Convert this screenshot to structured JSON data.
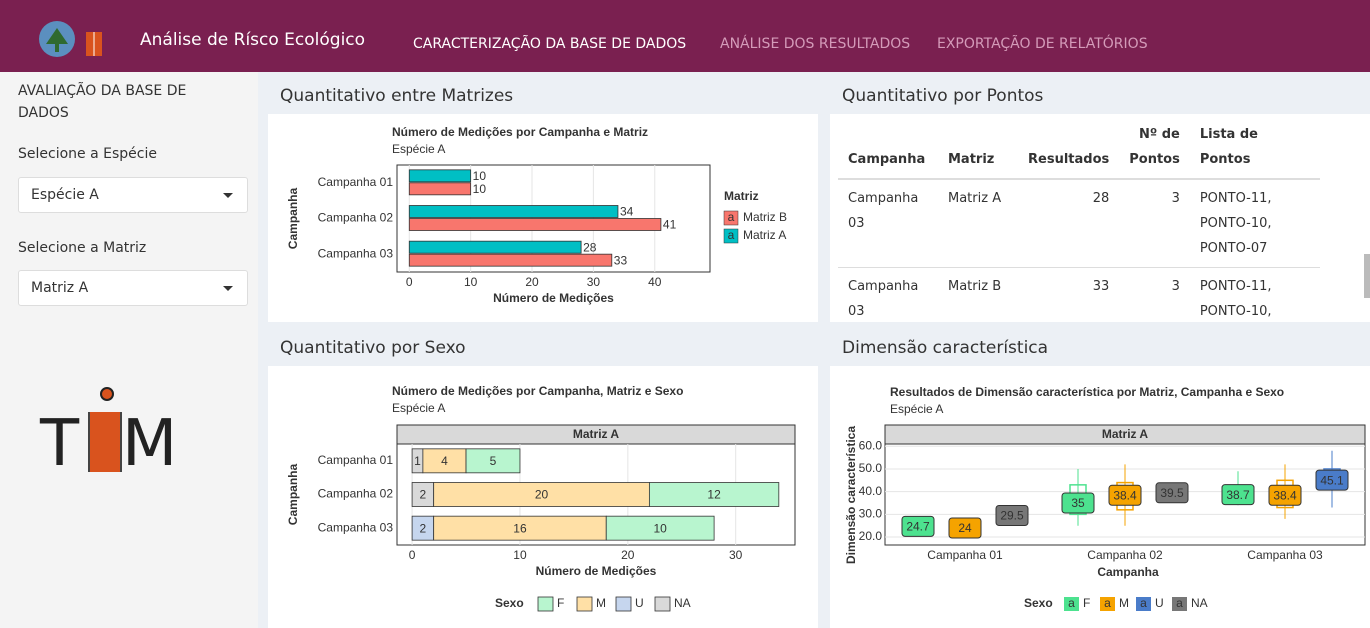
{
  "header": {
    "title": "Análise de Rísco Ecológico",
    "nav": [
      "CARACTERIZAÇÃO DA BASE DE DADOS",
      "ANÁLISE DOS RESULTADOS",
      "EXPORTAÇÃO DE RELATÓRIOS"
    ]
  },
  "sidebar": {
    "heading": "AVALIAÇÃO DA BASE DE DADOS",
    "species_label": "Selecione a Espécie",
    "species_value": "Espécie A",
    "matrix_label": "Selecione a Matriz",
    "matrix_value": "Matriz A",
    "logo_text": [
      "T",
      "M"
    ]
  },
  "panels": [
    {
      "title": "Quantitativo entre Matrizes",
      "chart_data": {
        "type": "grouped_hbar",
        "title": "Número de Medições por Campanha e Matriz",
        "subtitle": "Espécie A",
        "x_label": "Número de Medições",
        "y_label": "Campanha",
        "categories": [
          "Campanha 01",
          "Campanha 02",
          "Campanha 03"
        ],
        "series": [
          {
            "name": "Matriz A",
            "color": "#00bfc4",
            "values": [
              10,
              34,
              28
            ]
          },
          {
            "name": "Matriz B",
            "color": "#f8766d",
            "values": [
              10,
              41,
              33
            ]
          }
        ],
        "legend_title": "Matriz",
        "legend_key": "a",
        "xlim": [
          -2,
          49
        ],
        "xticks": [
          0,
          10,
          20,
          30,
          40
        ],
        "grid": true
      }
    },
    {
      "title": "Quantitativo por Pontos",
      "table": {
        "columns": [
          "Campanha",
          "Matriz",
          "Resultados",
          "Nº de Pontos",
          "Lista de Pontos"
        ],
        "rows": [
          [
            "Campanha 03",
            "Matriz A",
            "28",
            "3",
            "PONTO-11, PONTO-10, PONTO-07"
          ],
          [
            "Campanha 03",
            "Matriz B",
            "33",
            "3",
            "PONTO-11, PONTO-10,"
          ]
        ]
      }
    },
    {
      "title": "Quantitativo por Sexo",
      "chart_data": {
        "type": "stacked_hbar",
        "title": "Número de Medições por Campanha, Matriz e Sexo",
        "subtitle": "Espécie A",
        "facet": "Matriz A",
        "x_label": "Número de Medições",
        "y_label": "Campanha",
        "categories": [
          "Campanha 01",
          "Campanha 02",
          "Campanha 03"
        ],
        "series": [
          {
            "name": "F",
            "color": "#b8f5cf",
            "values": [
              5,
              12,
              10
            ]
          },
          {
            "name": "M",
            "color": "#ffe0a6",
            "values": [
              4,
              20,
              16
            ]
          },
          {
            "name": "U",
            "color": "#c6d6ee",
            "values": [
              null,
              null,
              2
            ]
          },
          {
            "name": "NA",
            "color": "#d9d9d9",
            "values": [
              1,
              2,
              null
            ]
          }
        ],
        "legend_title": "Sexo",
        "xlim": [
          -1.4,
          35.5
        ],
        "xticks": [
          0,
          10,
          20,
          30
        ],
        "grid": true
      }
    },
    {
      "title": "Dimensão característica",
      "chart_data": {
        "type": "boxplot",
        "title": "Resultados de Dimensão característica por Matriz, Campanha e Sexo",
        "subtitle": "Espécie A",
        "facet": "Matriz A",
        "x_label": "Campanha",
        "y_label": "Dimensão característica",
        "categories": [
          "Campanha 01",
          "Campanha 02",
          "Campanha 03"
        ],
        "series": [
          {
            "name": "F",
            "color": "#4de28f",
            "median": [
              24.7,
              35,
              38.7
            ],
            "q1": [
              23,
              30,
              36
            ],
            "q3": [
              26,
              43,
              42
            ],
            "min": [
              22,
              25,
              34
            ],
            "max": [
              28,
              50,
              49
            ]
          },
          {
            "name": "M",
            "color": "#f5a300",
            "median": [
              24,
              38.4,
              38.4
            ],
            "q1": [
              22,
              32,
              33
            ],
            "q3": [
              25.5,
              44,
              45
            ],
            "min": [
              20,
              25,
              28
            ],
            "max": [
              27,
              52,
              52
            ]
          },
          {
            "name": "U",
            "color": "#4a7cc9",
            "median": [
              null,
              null,
              45.1
            ],
            "q1": [
              null,
              null,
              42
            ],
            "q3": [
              null,
              null,
              50
            ],
            "min": [
              null,
              null,
              33
            ],
            "max": [
              null,
              null,
              58
            ]
          },
          {
            "name": "NA",
            "color": "#777777",
            "median": [
              29.5,
              39.5,
              null
            ],
            "q1": [
              28,
              39,
              null
            ],
            "q3": [
              31,
              40,
              null
            ],
            "min": [
              28,
              39,
              null
            ],
            "max": [
              31,
              40,
              null
            ]
          }
        ],
        "legend_title": "Sexo",
        "legend_key": "a",
        "ylim": [
          16.5,
          61
        ],
        "yticks": [
          {
            "value": 20,
            "label": "20.0"
          },
          {
            "value": 30,
            "label": "30.0"
          },
          {
            "value": 40,
            "label": "40.0"
          },
          {
            "value": 50,
            "label": "50.0"
          },
          {
            "value": 60,
            "label": "60.0"
          }
        ],
        "grid": true
      }
    }
  ]
}
